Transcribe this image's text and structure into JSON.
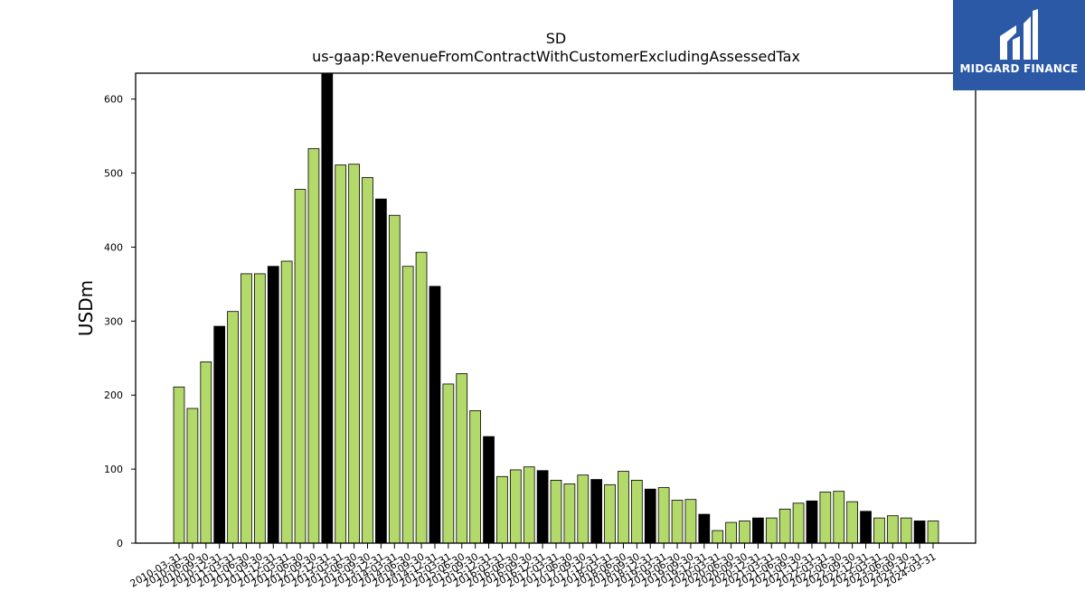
{
  "chart_data": {
    "type": "bar",
    "title": "SD",
    "subtitle": "us-gaap:RevenueFromContractWithCustomerExcludingAssessedTax",
    "xlabel": "",
    "ylabel": "USDm",
    "ylim": [
      0,
      635
    ],
    "yticks": [
      0,
      100,
      200,
      300,
      400,
      500,
      600
    ],
    "grid": false,
    "colors": {
      "quarter": "#b3d96a",
      "fiscal_q4": "#000000",
      "edge": "#000000"
    },
    "categories": [
      "2010-03-31",
      "2010-06-30",
      "2010-09-30",
      "2010-12-31",
      "2011-03-31",
      "2011-06-30",
      "2011-09-30",
      "2011-12-31",
      "2012-03-31",
      "2012-06-30",
      "2012-09-30",
      "2012-12-31",
      "2013-03-31",
      "2013-06-30",
      "2013-09-30",
      "2013-12-31",
      "2014-03-31",
      "2014-06-30",
      "2014-09-30",
      "2014-12-31",
      "2015-03-31",
      "2015-06-30",
      "2015-09-30",
      "2015-12-31",
      "2016-03-31",
      "2016-06-30",
      "2016-09-30",
      "2016-12-31",
      "2017-03-31",
      "2017-06-30",
      "2017-09-30",
      "2017-12-31",
      "2018-03-31",
      "2018-06-30",
      "2018-09-30",
      "2018-12-31",
      "2019-03-31",
      "2019-06-30",
      "2019-09-30",
      "2019-12-31",
      "2020-03-31",
      "2020-06-30",
      "2020-09-30",
      "2020-12-31",
      "2021-03-31",
      "2021-06-30",
      "2021-09-30",
      "2021-12-31",
      "2022-03-31",
      "2022-06-30",
      "2022-09-30",
      "2022-12-31",
      "2023-03-31",
      "2023-06-30",
      "2023-09-30",
      "2023-12-31",
      "2024-03-31"
    ],
    "values": [
      211,
      182,
      245,
      293,
      313,
      364,
      364,
      374,
      381,
      478,
      533,
      635,
      511,
      512,
      494,
      465,
      443,
      374,
      393,
      347,
      215,
      229,
      179,
      144,
      90,
      99,
      103,
      98,
      85,
      80,
      92,
      86,
      79,
      97,
      85,
      73,
      75,
      58,
      59,
      39,
      17,
      28,
      30,
      34,
      34,
      46,
      54,
      57,
      69,
      70,
      56,
      43,
      34,
      37,
      34,
      30,
      30
    ],
    "highlight_every": 4,
    "highlight_offset": 3
  },
  "branding": {
    "logo_text": "MIDGARD FINANCE",
    "logo_icon": "midgard-mi-logo-icon",
    "logo_bg": "#2b59a6"
  }
}
